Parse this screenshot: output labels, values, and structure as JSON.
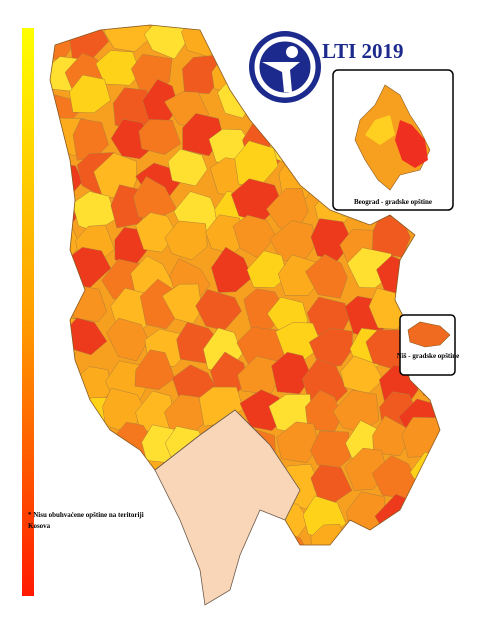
{
  "header": {
    "title": "LTI 2019"
  },
  "insets": [
    {
      "label": "Beograd - gradske opštine"
    },
    {
      "label": "Niš - gradske opštine"
    }
  ],
  "footnote": {
    "lines": [
      "* Nisu obuhvaćene opštine na teritoriji",
      "Kosova"
    ]
  }
}
